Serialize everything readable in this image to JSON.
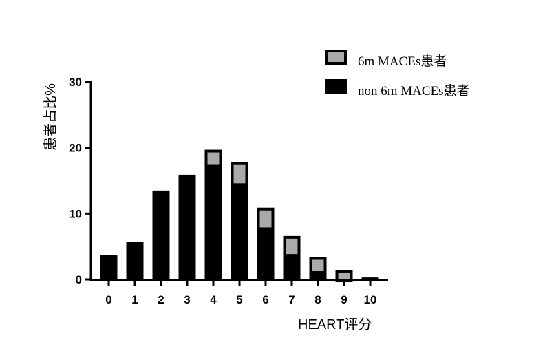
{
  "chart_data": {
    "type": "bar",
    "stacked": true,
    "categories": [
      "0",
      "1",
      "2",
      "3",
      "4",
      "5",
      "6",
      "7",
      "8",
      "9",
      "10"
    ],
    "series": [
      {
        "name": "non 6m MACEs患者",
        "color": "#000000",
        "values": [
          3.75,
          5.7,
          13.5,
          15.6,
          17.4,
          14.6,
          7.9,
          3.85,
          1.25,
          0,
          0.3
        ]
      },
      {
        "name": "6m MACEs患者",
        "color": "#aaaaaa",
        "values": [
          0,
          0,
          0,
          0.3,
          2.3,
          3.2,
          3.0,
          2.75,
          2.15,
          1.4,
          0
        ]
      }
    ],
    "xlabel": "HEART评分",
    "ylabel": "患者占比%",
    "ylim": [
      0,
      30
    ],
    "yticks": [
      "0",
      "10",
      "20",
      "30"
    ],
    "legend_position": "top-right",
    "grid": false
  }
}
